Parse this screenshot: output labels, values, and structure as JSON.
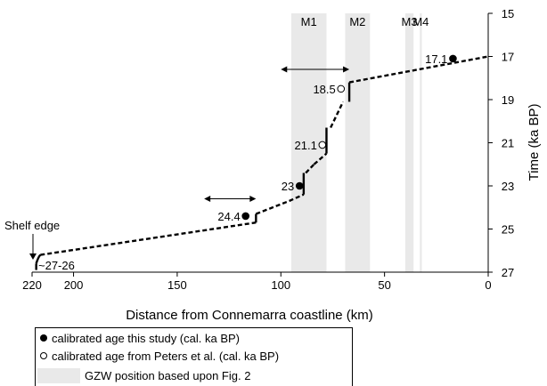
{
  "chart_data": {
    "type": "line",
    "xlabel": "Distance from Connemarra coastline (km)",
    "ylabel": "Time (ka BP)",
    "xlim": [
      220,
      0
    ],
    "ylim": [
      15,
      27
    ],
    "x_ticks": [
      220,
      200,
      150,
      100,
      50,
      0
    ],
    "x_tick_labels": [
      "220",
      "200",
      "150",
      "100",
      "50",
      "0"
    ],
    "y_ticks": [
      15,
      17,
      19,
      21,
      23,
      25,
      27
    ],
    "y_tick_labels": [
      "15",
      "17",
      "19",
      "21",
      "23",
      "25",
      "27"
    ],
    "gzw_bands": [
      {
        "label": "M1",
        "x_from": 95,
        "x_to": 78
      },
      {
        "label": "M2",
        "x_from": 69,
        "x_to": 57
      },
      {
        "label": "M3",
        "x_from": 40,
        "x_to": 36
      },
      {
        "label": "M4",
        "x_from": 33,
        "x_to": 32
      }
    ],
    "dashed_segments": [
      [
        [
          216,
          26.2
        ],
        [
          112,
          24.7
        ]
      ],
      [
        [
          112,
          24.3
        ],
        [
          96,
          23.7
        ]
      ],
      [
        [
          96,
          23.7
        ],
        [
          89,
          23.4
        ]
      ],
      [
        [
          88,
          22.4
        ],
        [
          84,
          22.0
        ]
      ],
      [
        [
          84,
          22.0
        ],
        [
          78,
          21.5
        ]
      ],
      [
        [
          76,
          20.3
        ],
        [
          70,
          19.1
        ]
      ],
      [
        [
          67,
          18.2
        ],
        [
          0,
          17.0
        ]
      ]
    ],
    "solid_segments": [
      [
        [
          218,
          26.9
        ],
        [
          218,
          26.6
        ]
      ],
      [
        [
          112,
          24.7
        ],
        [
          112,
          24.3
        ]
      ],
      [
        [
          89,
          23.4
        ],
        [
          89,
          22.4
        ]
      ],
      [
        [
          78,
          21.5
        ],
        [
          78,
          20.3
        ]
      ],
      [
        [
          67,
          19.1
        ],
        [
          67,
          18.2
        ]
      ]
    ],
    "shelf_curve": [
      [
        218,
        26.6
      ],
      [
        217,
        26.3
      ],
      [
        216,
        26.2
      ]
    ],
    "points": [
      {
        "label": "17.1",
        "x": 17,
        "y": 17.1,
        "source": "this study",
        "label_side": "left"
      },
      {
        "label": "18.5",
        "x": 71,
        "y": 18.5,
        "source": "Peters et al.",
        "label_side": "left"
      },
      {
        "label": "21.1",
        "x": 80,
        "y": 21.1,
        "source": "Peters et al.",
        "label_side": "left"
      },
      {
        "label": "23",
        "x": 91,
        "y": 23.0,
        "source": "this study",
        "label_side": "left"
      },
      {
        "label": "24.4",
        "x": 117,
        "y": 24.4,
        "source": "this study",
        "label_side": "left"
      }
    ],
    "arrows": [
      {
        "x_from": 100,
        "x_to": 67,
        "y": 17.6
      },
      {
        "x_from": 137,
        "x_to": 112,
        "y": 23.6
      }
    ],
    "annotations": {
      "shelf_edge": "Shelf edge",
      "shelf_age": "~27-26"
    }
  },
  "legend": {
    "items": [
      {
        "marker": "filled",
        "label": "calibrated age this study (cal. ka BP)"
      },
      {
        "marker": "open",
        "label": "calibrated age from Peters et al. (cal. ka BP)"
      },
      {
        "marker": "band",
        "label": "GZW position based upon Fig. 2"
      }
    ]
  },
  "colors": {
    "band": "#e9e9e9",
    "ink": "#000000"
  }
}
